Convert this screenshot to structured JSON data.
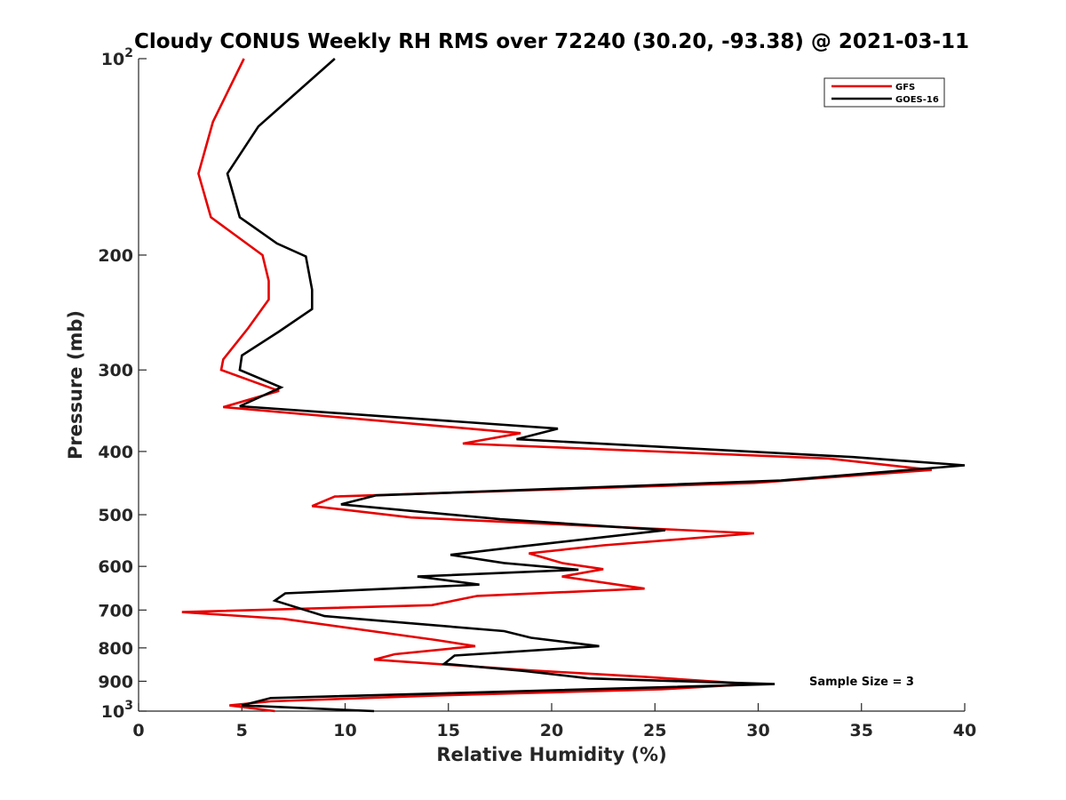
{
  "chart_data": {
    "type": "line",
    "title": "Cloudy CONUS Weekly RH RMS over 72240 (30.20, -93.38) @ 2021-03-11",
    "xlabel": "Relative Humidity (%)",
    "ylabel": "Pressure (mb)",
    "xlim": [
      0,
      40
    ],
    "ylim": [
      100,
      1000
    ],
    "yscale": "log",
    "y_reversed": true,
    "x_ticks": [
      0,
      5,
      10,
      15,
      20,
      25,
      30,
      35,
      40
    ],
    "y_ticks": [
      {
        "value": 100,
        "label": "10",
        "exp": "2"
      },
      {
        "value": 200,
        "label": "200"
      },
      {
        "value": 300,
        "label": "300"
      },
      {
        "value": 400,
        "label": "400"
      },
      {
        "value": 500,
        "label": "500"
      },
      {
        "value": 600,
        "label": "600"
      },
      {
        "value": 700,
        "label": "700"
      },
      {
        "value": 800,
        "label": "800"
      },
      {
        "value": 900,
        "label": "900"
      },
      {
        "value": 1000,
        "label": "10",
        "exp": "3"
      }
    ],
    "legend_position": "top-right",
    "annotation": "Sample Size = 3",
    "series": [
      {
        "name": "GFS",
        "color": "#e60000",
        "points": [
          [
            5.1,
            100
          ],
          [
            3.6,
            125
          ],
          [
            2.9,
            150
          ],
          [
            3.5,
            175
          ],
          [
            6.0,
            200
          ],
          [
            6.3,
            219
          ],
          [
            6.3,
            234
          ],
          [
            5.3,
            259
          ],
          [
            4.1,
            289
          ],
          [
            4.0,
            300
          ],
          [
            6.8,
            323
          ],
          [
            4.1,
            342
          ],
          [
            18.5,
            375
          ],
          [
            15.7,
            389
          ],
          [
            33.4,
            410
          ],
          [
            38.4,
            427
          ],
          [
            29.8,
            447
          ],
          [
            9.5,
            469
          ],
          [
            8.4,
            485
          ],
          [
            13.2,
            505
          ],
          [
            29.8,
            534
          ],
          [
            22.5,
            557
          ],
          [
            18.9,
            573
          ],
          [
            20.5,
            593
          ],
          [
            22.5,
            606
          ],
          [
            20.5,
            622
          ],
          [
            24.5,
            649
          ],
          [
            16.4,
            666
          ],
          [
            14.2,
            688
          ],
          [
            2.1,
            705
          ],
          [
            7.0,
            722
          ],
          [
            14.4,
            778
          ],
          [
            16.3,
            795
          ],
          [
            12.4,
            818
          ],
          [
            11.4,
            834
          ],
          [
            18.9,
            866
          ],
          [
            24.5,
            886
          ],
          [
            29.7,
            909
          ],
          [
            25.3,
            926
          ],
          [
            14.6,
            946
          ],
          [
            6.4,
            966
          ],
          [
            4.4,
            980
          ],
          [
            6.6,
            1000
          ]
        ]
      },
      {
        "name": "GOES-16",
        "color": "#000000",
        "points": [
          [
            9.5,
            100
          ],
          [
            5.8,
            127
          ],
          [
            4.3,
            150
          ],
          [
            4.9,
            175
          ],
          [
            6.7,
            192
          ],
          [
            8.1,
            201
          ],
          [
            8.4,
            226
          ],
          [
            8.4,
            242
          ],
          [
            6.8,
            262
          ],
          [
            5.0,
            285
          ],
          [
            4.9,
            300
          ],
          [
            6.9,
            319
          ],
          [
            4.9,
            341
          ],
          [
            20.3,
            369
          ],
          [
            18.3,
            383
          ],
          [
            34.6,
            408
          ],
          [
            40.0,
            420
          ],
          [
            31.1,
            443
          ],
          [
            11.5,
            467
          ],
          [
            9.8,
            482
          ],
          [
            17.5,
            508
          ],
          [
            25.5,
            528
          ],
          [
            18.6,
            559
          ],
          [
            15.1,
            576
          ],
          [
            17.7,
            593
          ],
          [
            21.3,
            607
          ],
          [
            13.5,
            622
          ],
          [
            16.5,
            640
          ],
          [
            7.1,
            660
          ],
          [
            6.6,
            677
          ],
          [
            9.0,
            715
          ],
          [
            17.7,
            754
          ],
          [
            19.0,
            772
          ],
          [
            22.3,
            795
          ],
          [
            15.3,
            822
          ],
          [
            14.8,
            846
          ],
          [
            18.7,
            868
          ],
          [
            21.8,
            891
          ],
          [
            30.8,
            909
          ],
          [
            14.9,
            939
          ],
          [
            6.4,
            955
          ],
          [
            5.0,
            980
          ],
          [
            11.4,
            1000
          ]
        ]
      }
    ]
  }
}
